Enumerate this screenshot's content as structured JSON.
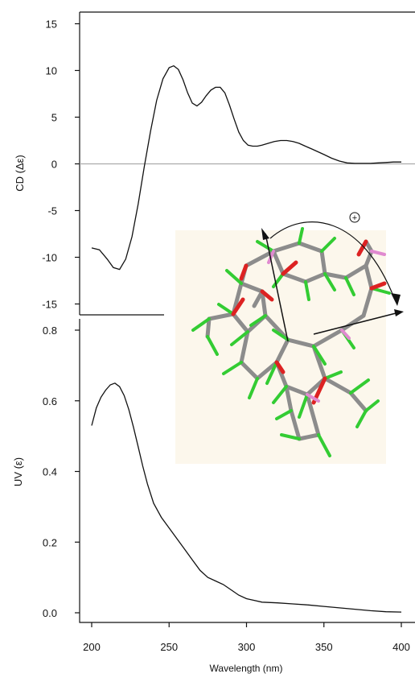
{
  "chart_data": [
    {
      "type": "line",
      "panel": "top",
      "ylabel": "CD (Δε)",
      "xlabel": "",
      "xlim": [
        200,
        400
      ],
      "ylim": [
        -16,
        16
      ],
      "yticks": [
        15,
        10,
        5,
        0,
        -5,
        -10,
        -15
      ],
      "grid": false,
      "zero_line": true,
      "series": [
        {
          "x": [
            200,
            205,
            210,
            214,
            218,
            222,
            226,
            230,
            234,
            238,
            242,
            246,
            250,
            253,
            256,
            259,
            262,
            265,
            268,
            271,
            274,
            277,
            280,
            283,
            286,
            289,
            292,
            295,
            298,
            301,
            304,
            307,
            310,
            314,
            318,
            322,
            326,
            330,
            334,
            338,
            342,
            346,
            350,
            355,
            360,
            365,
            370,
            375,
            380,
            385,
            390,
            395,
            400
          ],
          "values": [
            -9,
            -9.2,
            -10.2,
            -11.1,
            -11.3,
            -10.2,
            -7.8,
            -4.3,
            -0.3,
            3.5,
            6.8,
            9.1,
            10.3,
            10.5,
            10.1,
            9.0,
            7.6,
            6.5,
            6.2,
            6.6,
            7.3,
            7.9,
            8.2,
            8.2,
            7.6,
            6.3,
            4.8,
            3.4,
            2.5,
            2.0,
            1.9,
            1.9,
            2.0,
            2.2,
            2.4,
            2.5,
            2.5,
            2.4,
            2.2,
            1.9,
            1.6,
            1.3,
            1.0,
            0.6,
            0.3,
            0.1,
            0.05,
            0.05,
            0.05,
            0.1,
            0.15,
            0.2,
            0.2
          ]
        }
      ]
    },
    {
      "type": "line",
      "panel": "bottom",
      "ylabel": "UV (ε)",
      "xlabel": "Wavelength (nm)",
      "xlim": [
        200,
        400
      ],
      "ylim": [
        0,
        0.8
      ],
      "yticks": [
        0.8,
        0.6,
        0.4,
        0.2,
        0.0
      ],
      "xticks": [
        200,
        250,
        300,
        350,
        400
      ],
      "grid": false,
      "series": [
        {
          "x": [
            200,
            203,
            206,
            209,
            212,
            215,
            218,
            221,
            224,
            227,
            230,
            233,
            236,
            240,
            245,
            250,
            255,
            260,
            265,
            270,
            275,
            280,
            285,
            290,
            295,
            300,
            305,
            310,
            320,
            330,
            340,
            350,
            360,
            370,
            380,
            390,
            400
          ],
          "values": [
            0.53,
            0.58,
            0.61,
            0.63,
            0.645,
            0.65,
            0.64,
            0.615,
            0.575,
            0.525,
            0.47,
            0.415,
            0.365,
            0.31,
            0.27,
            0.24,
            0.21,
            0.18,
            0.15,
            0.12,
            0.1,
            0.09,
            0.08,
            0.065,
            0.05,
            0.04,
            0.035,
            0.03,
            0.028,
            0.025,
            0.022,
            0.018,
            0.014,
            0.01,
            0.006,
            0.003,
            0.002
          ]
        }
      ]
    }
  ],
  "inset": {
    "subject": "molecule",
    "annotation": "+",
    "colors": {
      "background": "#fcf7ec",
      "carbon": "#8c8c8c",
      "hydrogen": "#33cc33",
      "oxygen": "#dd2222",
      "pink": "#e08ad0",
      "arrow": "#111111"
    }
  },
  "colors": {
    "line": "#111111",
    "zero_line": "#aaaaaa",
    "axis": "#111111"
  }
}
